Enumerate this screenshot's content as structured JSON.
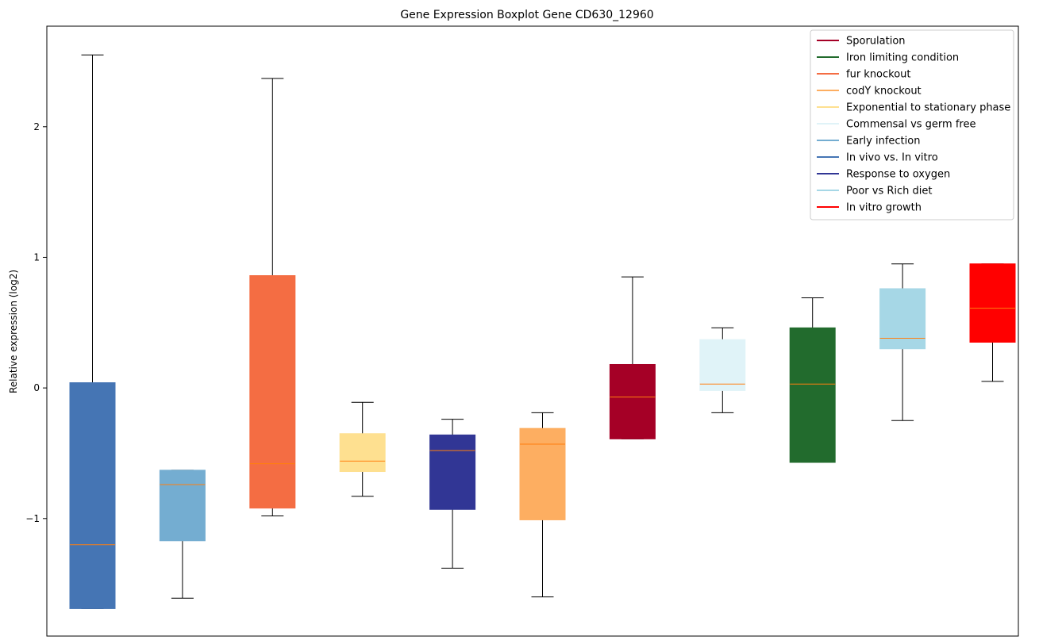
{
  "chart_data": {
    "type": "boxplot",
    "title": "Gene Expression Boxplot Gene CD630_12960",
    "xlabel": "",
    "ylabel": "Relative expression (log2)",
    "ylim": [
      -1.9,
      2.77
    ],
    "yticks": [
      -1,
      0,
      1,
      2
    ],
    "grid": false,
    "legend_position": "top-right",
    "series": [
      {
        "name": "In vivo vs. In vitro",
        "color": "#4575b4",
        "whisker_low": -1.69,
        "q1": -1.69,
        "median": -1.2,
        "q3": 0.04,
        "whisker_high": 2.55
      },
      {
        "name": "Early infection",
        "color": "#74add1",
        "whisker_low": -1.61,
        "q1": -1.17,
        "median": -0.74,
        "q3": -0.63,
        "whisker_high": -0.63
      },
      {
        "name": "fur knockout",
        "color": "#f46d43",
        "whisker_low": -0.98,
        "q1": -0.92,
        "median": -0.58,
        "q3": 0.86,
        "whisker_high": 2.37
      },
      {
        "name": "Exponential to stationary phase",
        "color": "#fee090",
        "whisker_low": -0.83,
        "q1": -0.64,
        "median": -0.56,
        "q3": -0.35,
        "whisker_high": -0.11
      },
      {
        "name": "Response to oxygen",
        "color": "#313695",
        "whisker_low": -1.38,
        "q1": -0.93,
        "median": -0.48,
        "q3": -0.36,
        "whisker_high": -0.24
      },
      {
        "name": "codY knockout",
        "color": "#fdae61",
        "whisker_low": -1.6,
        "q1": -1.01,
        "median": -0.43,
        "q3": -0.31,
        "whisker_high": -0.19
      },
      {
        "name": "Sporulation",
        "color": "#a50026",
        "whisker_low": -0.39,
        "q1": -0.39,
        "median": -0.07,
        "q3": 0.18,
        "whisker_high": 0.85
      },
      {
        "name": "Commensal vs germ free",
        "color": "#e0f3f8",
        "whisker_low": -0.19,
        "q1": -0.02,
        "median": 0.03,
        "q3": 0.37,
        "whisker_high": 0.46
      },
      {
        "name": "Iron limiting condition",
        "color": "#226b2d",
        "whisker_low": -0.57,
        "q1": -0.57,
        "median": 0.03,
        "q3": 0.46,
        "whisker_high": 0.69
      },
      {
        "name": "Poor vs Rich diet",
        "color": "#a6d7e6",
        "whisker_low": -0.25,
        "q1": 0.3,
        "median": 0.38,
        "q3": 0.76,
        "whisker_high": 0.95
      },
      {
        "name": "In vitro growth",
        "color": "#ff0000",
        "whisker_low": 0.05,
        "q1": 0.35,
        "median": 0.61,
        "q3": 0.95,
        "whisker_high": 0.95
      }
    ],
    "median_color": "#ff7f0e",
    "legend": [
      {
        "label": "Sporulation",
        "color": "#a50026"
      },
      {
        "label": "Iron limiting condition",
        "color": "#226b2d"
      },
      {
        "label": "fur knockout",
        "color": "#f46d43"
      },
      {
        "label": "codY knockout",
        "color": "#fdae61"
      },
      {
        "label": "Exponential to stationary phase",
        "color": "#fee090"
      },
      {
        "label": "Commensal vs germ free",
        "color": "#e0f3f8"
      },
      {
        "label": "Early infection",
        "color": "#74add1"
      },
      {
        "label": "In vivo vs. In vitro",
        "color": "#4575b4"
      },
      {
        "label": "Response to oxygen",
        "color": "#313695"
      },
      {
        "label": "Poor vs Rich diet",
        "color": "#a6d7e6"
      },
      {
        "label": "In vitro growth",
        "color": "#ff0000"
      }
    ]
  }
}
